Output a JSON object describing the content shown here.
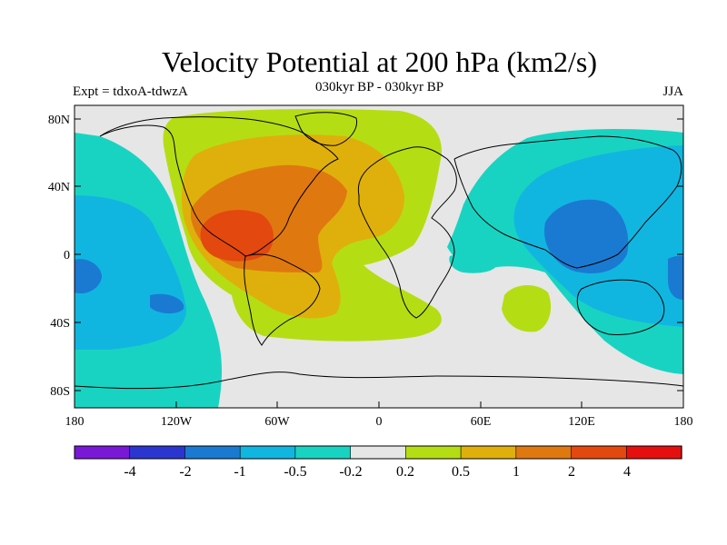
{
  "header": {
    "title": "Velocity Potential at 200 hPa (km2/s)",
    "subtitle": "030kyr BP - 030kyr BP",
    "left_label": "Expt = tdxoA-tdwzA",
    "right_label": "JJA"
  },
  "map": {
    "lat_ticks": [
      "80N",
      "40N",
      "0",
      "40S",
      "80S"
    ],
    "lon_ticks": [
      "180",
      "120W",
      "60W",
      "0",
      "60E",
      "120E",
      "180"
    ]
  },
  "colorbar": {
    "colors": [
      "#7a18d8",
      "#2a36cf",
      "#1a7ad2",
      "#11b6e0",
      "#19d3c2",
      "#e6e6e6",
      "#b5dd14",
      "#dfb00c",
      "#e07810",
      "#e3480f",
      "#e60f0f"
    ],
    "labels": [
      "-4",
      "-2",
      "-1",
      "-0.5",
      "-0.2",
      "0.2",
      "0.5",
      "1",
      "2",
      "4"
    ]
  }
}
